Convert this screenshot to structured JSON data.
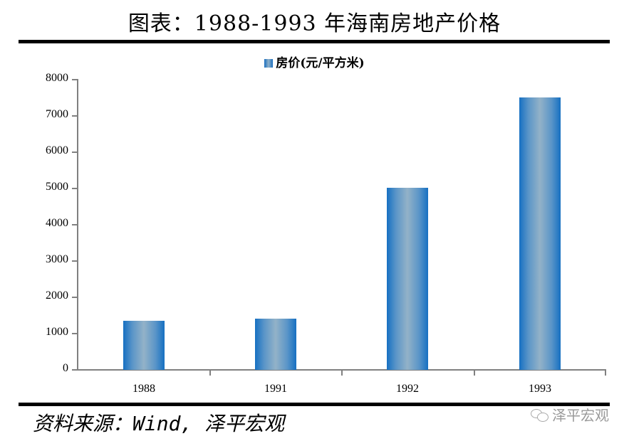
{
  "header": {
    "title": "图表：1988-1993 年海南房地产价格"
  },
  "legend": {
    "label": "房价(元/平方米)"
  },
  "axis": {
    "y_ticks": [
      "8000",
      "7000",
      "6000",
      "5000",
      "4000",
      "3000",
      "2000",
      "1000",
      "0"
    ],
    "x_labels": [
      "1988",
      "1991",
      "1992",
      "1993"
    ]
  },
  "footer": {
    "source": "资料来源：Wind, 泽平宏观",
    "watermark": "泽平宏观"
  },
  "colors": {
    "bar_edge": "#1670c2",
    "bar_center": "#93b2c8",
    "axis": "#808080",
    "rule": "#000000"
  },
  "chart_data": {
    "type": "bar",
    "title": "图表：1988-1993 年海南房地产价格",
    "categories": [
      "1988",
      "1991",
      "1992",
      "1993"
    ],
    "series": [
      {
        "name": "房价(元/平方米)",
        "values": [
          1350,
          1400,
          5000,
          7500
        ]
      }
    ],
    "xlabel": "",
    "ylabel": "",
    "ylim": [
      0,
      8000
    ],
    "yticks": [
      0,
      1000,
      2000,
      3000,
      4000,
      5000,
      6000,
      7000,
      8000
    ],
    "grid": false,
    "legend_position": "top",
    "source": "资料来源：Wind, 泽平宏观"
  }
}
